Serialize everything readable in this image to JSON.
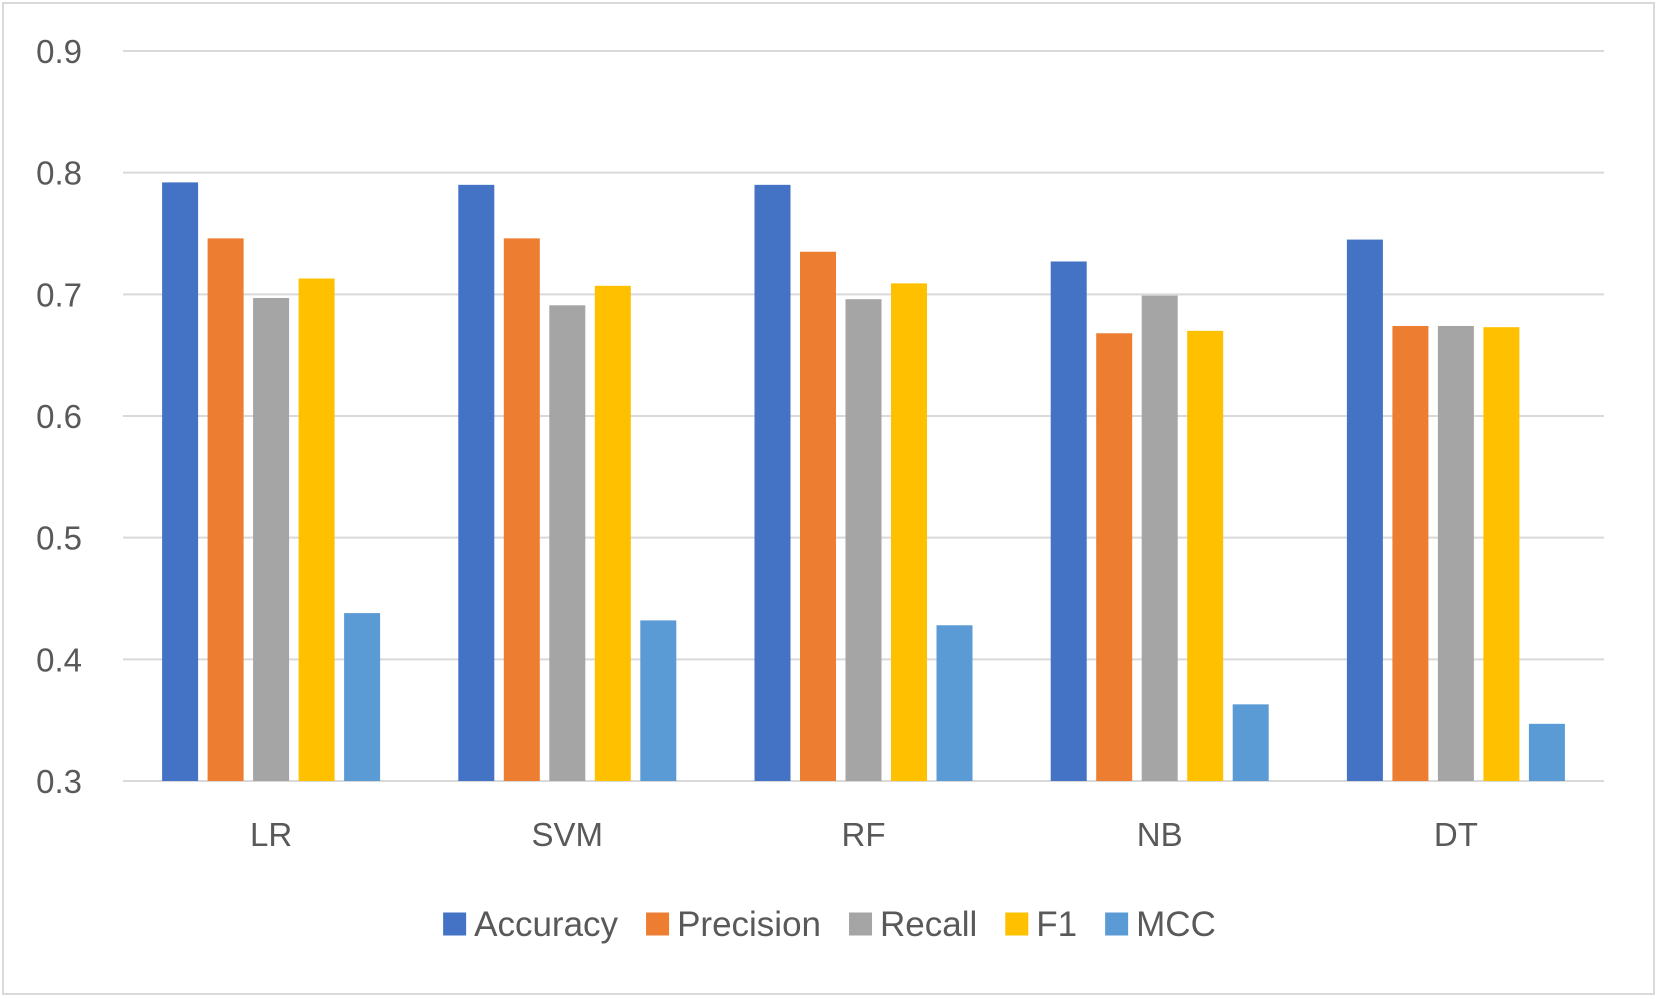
{
  "chart_data": {
    "type": "bar",
    "categories": [
      "LR",
      "SVM",
      "RF",
      "NB",
      "DT"
    ],
    "series": [
      {
        "name": "Accuracy",
        "color": "#4472C4",
        "values": [
          0.792,
          0.79,
          0.79,
          0.727,
          0.745
        ]
      },
      {
        "name": "Precision",
        "color": "#ED7D31",
        "values": [
          0.746,
          0.746,
          0.735,
          0.668,
          0.674
        ]
      },
      {
        "name": "Recall",
        "color": "#A5A5A5",
        "values": [
          0.697,
          0.691,
          0.696,
          0.699,
          0.674
        ]
      },
      {
        "name": "F1",
        "color": "#FFC000",
        "values": [
          0.713,
          0.707,
          0.709,
          0.67,
          0.673
        ]
      },
      {
        "name": "MCC",
        "color": "#5B9BD5",
        "values": [
          0.438,
          0.432,
          0.428,
          0.363,
          0.347
        ]
      }
    ],
    "ylim": [
      0.3,
      0.9
    ],
    "yticks": [
      0.3,
      0.4,
      0.5,
      0.6,
      0.7,
      0.8,
      0.9
    ],
    "ytick_labels": [
      "0.3",
      "0.4",
      "0.5",
      "0.6",
      "0.7",
      "0.8",
      "0.9"
    ],
    "grid": true,
    "gridline_color": "#d9d9d9",
    "text_color": "#595959",
    "legend_position": "bottom",
    "title": "",
    "xlabel": "",
    "ylabel": ""
  }
}
